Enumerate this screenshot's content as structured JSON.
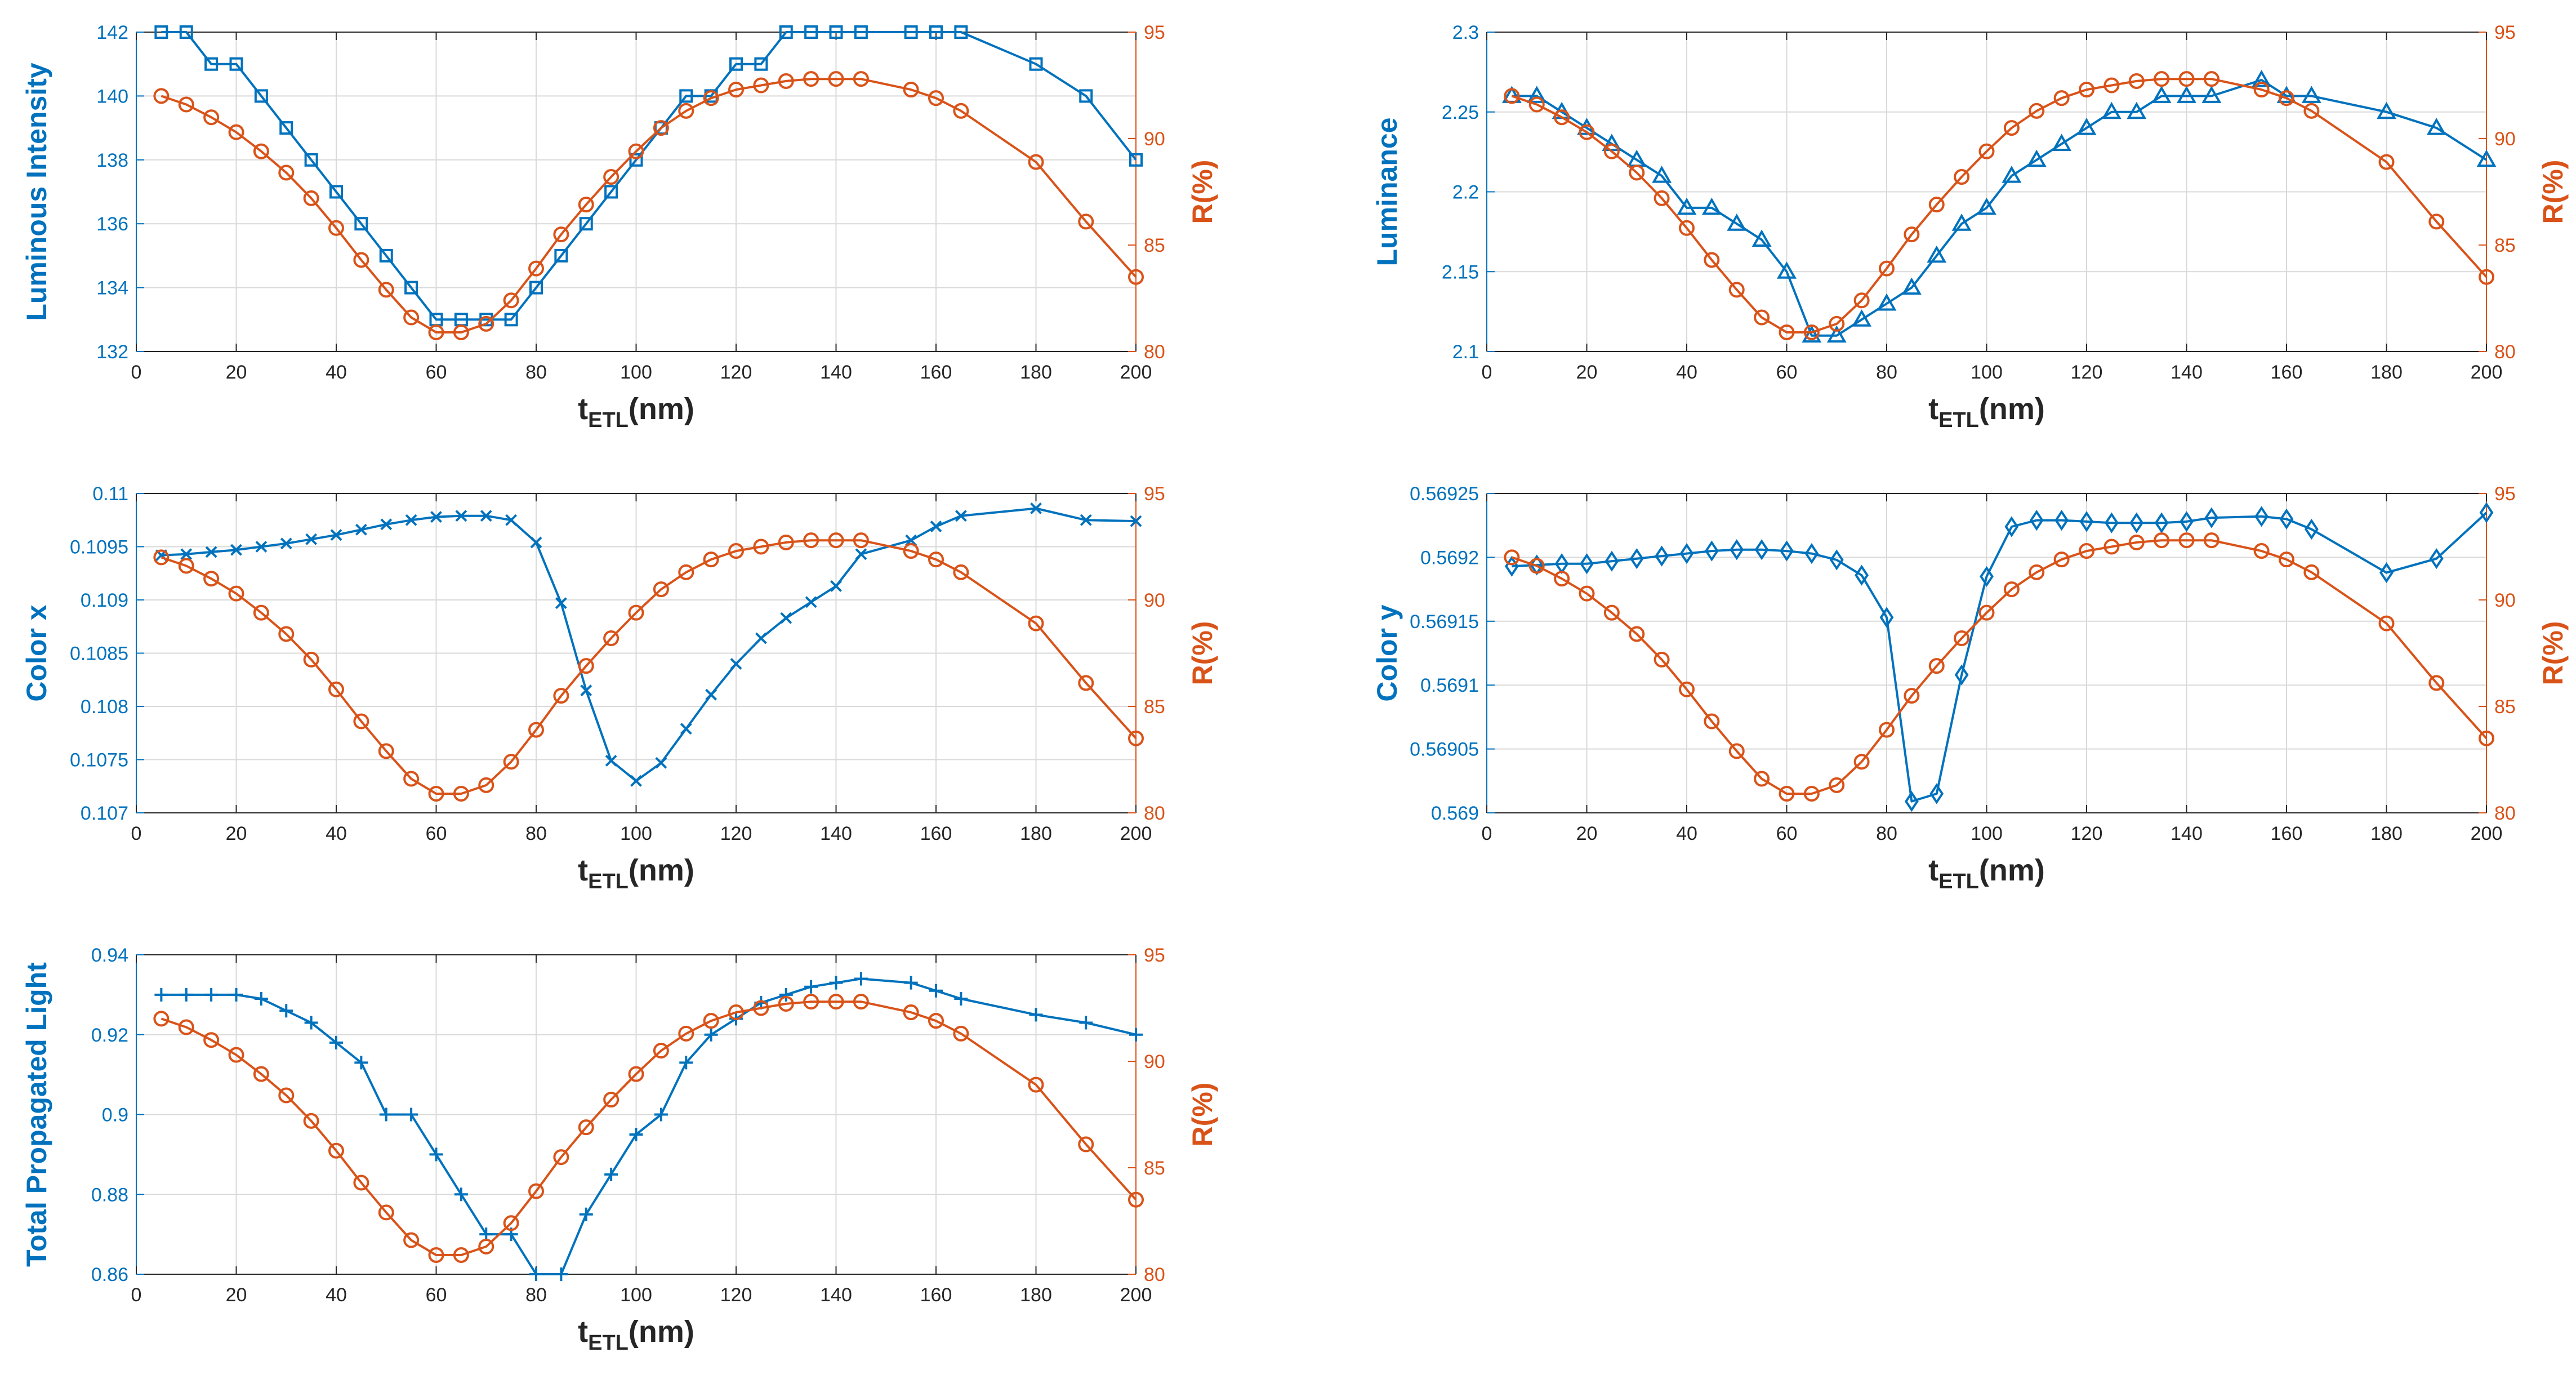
{
  "figure": {
    "xlabel_main": "t",
    "xlabel_sub": "ETL",
    "xlabel_unit": "(nm)",
    "right_ylabel": "R(%)",
    "colors": {
      "left": "#0072BD",
      "right": "#D95319",
      "axis": "#262626",
      "grid": "#d9d9d9"
    }
  },
  "chart_data": [
    {
      "type": "line",
      "panel": "luminous-intensity",
      "xlabel": "t_ETL(nm)",
      "ylabel": "Luminous Intensity",
      "xlim": [
        0,
        200
      ],
      "xticks": [
        0,
        20,
        40,
        60,
        80,
        100,
        120,
        140,
        160,
        180,
        200
      ],
      "ylim_left": [
        132,
        142
      ],
      "yticks_left": [
        132,
        134,
        136,
        138,
        140,
        142
      ],
      "ytick_labels_left": [
        "132",
        "134",
        "136",
        "138",
        "140",
        "142"
      ],
      "ylim_right": [
        80,
        95
      ],
      "yticks_right": [
        80,
        85,
        90,
        95
      ],
      "series": [
        {
          "name": "Luminous Intensity",
          "axis": "left",
          "marker": "square",
          "x": [
            5,
            10,
            15,
            20,
            25,
            30,
            35,
            40,
            45,
            50,
            55,
            60,
            65,
            70,
            75,
            80,
            85,
            90,
            95,
            100,
            105,
            110,
            115,
            120,
            125,
            130,
            135,
            140,
            145,
            155,
            160,
            165,
            180,
            190,
            200
          ],
          "y": [
            142,
            142,
            141,
            141,
            140,
            139,
            138,
            137,
            136,
            135,
            134,
            133,
            133,
            133,
            133,
            134,
            135,
            136,
            137,
            138,
            139,
            140,
            140,
            141,
            141,
            142,
            142,
            142,
            142,
            142,
            142,
            142,
            141,
            140,
            138
          ]
        },
        {
          "name": "R(%)",
          "axis": "right",
          "marker": "circle",
          "x": [
            5,
            10,
            15,
            20,
            25,
            30,
            35,
            40,
            45,
            50,
            55,
            60,
            65,
            70,
            75,
            80,
            85,
            90,
            95,
            100,
            105,
            110,
            115,
            120,
            125,
            130,
            135,
            140,
            145,
            155,
            160,
            165,
            180,
            190,
            200
          ],
          "y": [
            92.0,
            91.6,
            91.0,
            90.3,
            89.4,
            88.4,
            87.2,
            85.8,
            84.3,
            82.9,
            81.6,
            80.9,
            80.9,
            81.3,
            82.4,
            83.9,
            85.5,
            86.9,
            88.2,
            89.4,
            90.5,
            91.3,
            91.9,
            92.3,
            92.5,
            92.7,
            92.8,
            92.8,
            92.8,
            92.3,
            91.9,
            91.3,
            88.9,
            86.1,
            83.5
          ]
        }
      ]
    },
    {
      "type": "line",
      "panel": "luminance",
      "xlabel": "t_ETL(nm)",
      "ylabel": "Luminance",
      "xlim": [
        0,
        200
      ],
      "xticks": [
        0,
        20,
        40,
        60,
        80,
        100,
        120,
        140,
        160,
        180,
        200
      ],
      "ylim_left": [
        2.1,
        2.3
      ],
      "yticks_left": [
        2.1,
        2.15,
        2.2,
        2.25,
        2.3
      ],
      "ytick_labels_left": [
        "2.1",
        "2.15",
        "2.2",
        "2.25",
        "2.3"
      ],
      "ylim_right": [
        80,
        95
      ],
      "yticks_right": [
        80,
        85,
        90,
        95
      ],
      "series": [
        {
          "name": "Luminance",
          "axis": "left",
          "marker": "triangle",
          "x": [
            5,
            10,
            15,
            20,
            25,
            30,
            35,
            40,
            45,
            50,
            55,
            60,
            65,
            70,
            75,
            80,
            85,
            90,
            95,
            100,
            105,
            110,
            115,
            120,
            125,
            130,
            135,
            140,
            145,
            155,
            160,
            165,
            180,
            190,
            200
          ],
          "y": [
            2.26,
            2.26,
            2.25,
            2.24,
            2.23,
            2.22,
            2.21,
            2.19,
            2.19,
            2.18,
            2.17,
            2.15,
            2.11,
            2.11,
            2.12,
            2.13,
            2.14,
            2.16,
            2.18,
            2.19,
            2.21,
            2.22,
            2.23,
            2.24,
            2.25,
            2.25,
            2.26,
            2.26,
            2.26,
            2.27,
            2.26,
            2.26,
            2.25,
            2.24,
            2.22
          ]
        },
        {
          "name": "R(%)",
          "axis": "right",
          "marker": "circle",
          "x": [
            5,
            10,
            15,
            20,
            25,
            30,
            35,
            40,
            45,
            50,
            55,
            60,
            65,
            70,
            75,
            80,
            85,
            90,
            95,
            100,
            105,
            110,
            115,
            120,
            125,
            130,
            135,
            140,
            145,
            155,
            160,
            165,
            180,
            190,
            200
          ],
          "y": [
            92.0,
            91.6,
            91.0,
            90.3,
            89.4,
            88.4,
            87.2,
            85.8,
            84.3,
            82.9,
            81.6,
            80.9,
            80.9,
            81.3,
            82.4,
            83.9,
            85.5,
            86.9,
            88.2,
            89.4,
            90.5,
            91.3,
            91.9,
            92.3,
            92.5,
            92.7,
            92.8,
            92.8,
            92.8,
            92.3,
            91.9,
            91.3,
            88.9,
            86.1,
            83.5
          ]
        }
      ]
    },
    {
      "type": "line",
      "panel": "color-x",
      "xlabel": "t_ETL(nm)",
      "ylabel": "Color x",
      "xlim": [
        0,
        200
      ],
      "xticks": [
        0,
        20,
        40,
        60,
        80,
        100,
        120,
        140,
        160,
        180,
        200
      ],
      "ylim_left": [
        0.107,
        0.11
      ],
      "yticks_left": [
        0.107,
        0.1075,
        0.108,
        0.1085,
        0.109,
        0.1095,
        0.11
      ],
      "ytick_labels_left": [
        "0.107",
        "0.1075",
        "0.108",
        "0.1085",
        "0.109",
        "0.1095",
        "0.11"
      ],
      "ylim_right": [
        80,
        95
      ],
      "yticks_right": [
        80,
        85,
        90,
        95
      ],
      "series": [
        {
          "name": "Color x",
          "axis": "left",
          "marker": "cross",
          "x": [
            5,
            10,
            15,
            20,
            25,
            30,
            35,
            40,
            45,
            50,
            55,
            60,
            65,
            70,
            75,
            80,
            85,
            90,
            95,
            100,
            105,
            110,
            115,
            120,
            125,
            130,
            135,
            140,
            145,
            155,
            160,
            165,
            180,
            190,
            200
          ],
          "y": [
            0.10942,
            0.10943,
            0.10945,
            0.10947,
            0.1095,
            0.10953,
            0.10957,
            0.10961,
            0.10966,
            0.10971,
            0.10975,
            0.10978,
            0.10979,
            0.10979,
            0.10975,
            0.10954,
            0.10897,
            0.10815,
            0.10749,
            0.1073,
            0.10747,
            0.10779,
            0.10811,
            0.1084,
            0.10864,
            0.10883,
            0.10898,
            0.10913,
            0.10943,
            0.10956,
            0.10969,
            0.10979,
            0.10986,
            0.10975,
            0.10974
          ]
        },
        {
          "name": "R(%)",
          "axis": "right",
          "marker": "circle",
          "x": [
            5,
            10,
            15,
            20,
            25,
            30,
            35,
            40,
            45,
            50,
            55,
            60,
            65,
            70,
            75,
            80,
            85,
            90,
            95,
            100,
            105,
            110,
            115,
            120,
            125,
            130,
            135,
            140,
            145,
            155,
            160,
            165,
            180,
            190,
            200
          ],
          "y": [
            92.0,
            91.6,
            91.0,
            90.3,
            89.4,
            88.4,
            87.2,
            85.8,
            84.3,
            82.9,
            81.6,
            80.9,
            80.9,
            81.3,
            82.4,
            83.9,
            85.5,
            86.9,
            88.2,
            89.4,
            90.5,
            91.3,
            91.9,
            92.3,
            92.5,
            92.7,
            92.8,
            92.8,
            92.8,
            92.3,
            91.9,
            91.3,
            88.9,
            86.1,
            83.5
          ]
        }
      ]
    },
    {
      "type": "line",
      "panel": "color-y",
      "xlabel": "t_ETL(nm)",
      "ylabel": "Color y",
      "xlim": [
        0,
        200
      ],
      "xticks": [
        0,
        20,
        40,
        60,
        80,
        100,
        120,
        140,
        160,
        180,
        200
      ],
      "ylim_left": [
        0.569,
        0.56925
      ],
      "yticks_left": [
        0.569,
        0.56905,
        0.5691,
        0.56915,
        0.5692,
        0.56925
      ],
      "ytick_labels_left": [
        "0.569",
        "0.56905",
        "0.5691",
        "0.56915",
        "0.5692",
        "0.56925"
      ],
      "ylim_right": [
        80,
        95
      ],
      "yticks_right": [
        80,
        85,
        90,
        95
      ],
      "series": [
        {
          "name": "Color y",
          "axis": "left",
          "marker": "diamond",
          "x": [
            5,
            10,
            15,
            20,
            25,
            30,
            35,
            40,
            45,
            50,
            55,
            60,
            65,
            70,
            75,
            80,
            85,
            90,
            95,
            100,
            105,
            110,
            115,
            120,
            125,
            130,
            135,
            140,
            145,
            155,
            160,
            165,
            180,
            190,
            200
          ],
          "y": [
            0.569193,
            0.569194,
            0.569195,
            0.569195,
            0.569197,
            0.569199,
            0.569201,
            0.569203,
            0.569205,
            0.569206,
            0.569206,
            0.569205,
            0.569203,
            0.569198,
            0.569186,
            0.569153,
            0.569009,
            0.569015,
            0.569108,
            0.569185,
            0.569224,
            0.569229,
            0.569229,
            0.569228,
            0.569227,
            0.569227,
            0.569227,
            0.569228,
            0.569231,
            0.569232,
            0.56923,
            0.569222,
            0.569188,
            0.569199,
            0.569235
          ]
        },
        {
          "name": "R(%)",
          "axis": "right",
          "marker": "circle",
          "x": [
            5,
            10,
            15,
            20,
            25,
            30,
            35,
            40,
            45,
            50,
            55,
            60,
            65,
            70,
            75,
            80,
            85,
            90,
            95,
            100,
            105,
            110,
            115,
            120,
            125,
            130,
            135,
            140,
            145,
            155,
            160,
            165,
            180,
            190,
            200
          ],
          "y": [
            92.0,
            91.6,
            91.0,
            90.3,
            89.4,
            88.4,
            87.2,
            85.8,
            84.3,
            82.9,
            81.6,
            80.9,
            80.9,
            81.3,
            82.4,
            83.9,
            85.5,
            86.9,
            88.2,
            89.4,
            90.5,
            91.3,
            91.9,
            92.3,
            92.5,
            92.7,
            92.8,
            92.8,
            92.8,
            92.3,
            91.9,
            91.3,
            88.9,
            86.1,
            83.5
          ]
        }
      ]
    },
    {
      "type": "line",
      "panel": "total-propagated-light",
      "xlabel": "t_ETL(nm)",
      "ylabel": "Total Propagated Light",
      "xlim": [
        0,
        200
      ],
      "xticks": [
        0,
        20,
        40,
        60,
        80,
        100,
        120,
        140,
        160,
        180,
        200
      ],
      "ylim_left": [
        0.86,
        0.94
      ],
      "yticks_left": [
        0.86,
        0.88,
        0.9,
        0.92,
        0.94
      ],
      "ytick_labels_left": [
        "0.86",
        "0.88",
        "0.9",
        "0.92",
        "0.94"
      ],
      "ylim_right": [
        80,
        95
      ],
      "yticks_right": [
        80,
        85,
        90,
        95
      ],
      "series": [
        {
          "name": "Total Propagated Light",
          "axis": "left",
          "marker": "plus",
          "x": [
            5,
            10,
            15,
            20,
            25,
            30,
            35,
            40,
            45,
            50,
            55,
            60,
            65,
            70,
            75,
            80,
            85,
            90,
            95,
            100,
            105,
            110,
            115,
            120,
            125,
            130,
            135,
            140,
            145,
            155,
            160,
            165,
            180,
            190,
            200
          ],
          "y": [
            0.93,
            0.93,
            0.93,
            0.93,
            0.929,
            0.926,
            0.923,
            0.918,
            0.913,
            0.9,
            0.9,
            0.89,
            0.88,
            0.87,
            0.87,
            0.86,
            0.86,
            0.875,
            0.885,
            0.895,
            0.9,
            0.913,
            0.92,
            0.924,
            0.928,
            0.93,
            0.932,
            0.933,
            0.934,
            0.933,
            0.931,
            0.929,
            0.925,
            0.923,
            0.92
          ]
        },
        {
          "name": "R(%)",
          "axis": "right",
          "marker": "circle",
          "x": [
            5,
            10,
            15,
            20,
            25,
            30,
            35,
            40,
            45,
            50,
            55,
            60,
            65,
            70,
            75,
            80,
            85,
            90,
            95,
            100,
            105,
            110,
            115,
            120,
            125,
            130,
            135,
            140,
            145,
            155,
            160,
            165,
            180,
            190,
            200
          ],
          "y": [
            92.0,
            91.6,
            91.0,
            90.3,
            89.4,
            88.4,
            87.2,
            85.8,
            84.3,
            82.9,
            81.6,
            80.9,
            80.9,
            81.3,
            82.4,
            83.9,
            85.5,
            86.9,
            88.2,
            89.4,
            90.5,
            91.3,
            91.9,
            92.3,
            92.5,
            92.7,
            92.8,
            92.8,
            92.8,
            92.3,
            91.9,
            91.3,
            88.9,
            86.1,
            83.5
          ]
        }
      ]
    }
  ]
}
